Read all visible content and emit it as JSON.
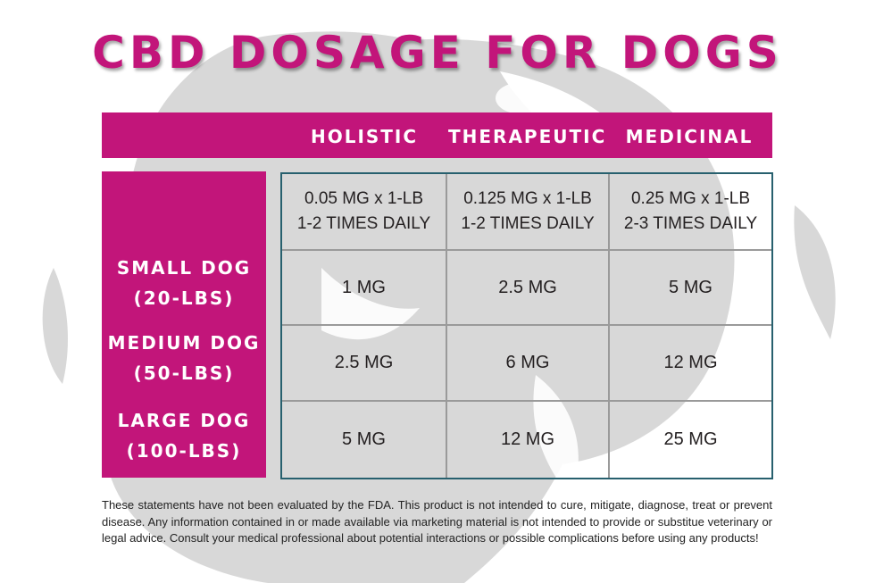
{
  "title": "CBD DOSAGE FOR DOGS",
  "colors": {
    "accent": "#c2157a",
    "grid_border": "#27606e",
    "watermark": "#c8c8c8"
  },
  "watermark_icon": "dog-head-icon",
  "columns": [
    "HOLISTIC",
    "THERAPEUTIC",
    "MEDICINAL"
  ],
  "dose_rates": [
    {
      "amount": "0.05 MG x 1-LB",
      "frequency": "1-2 TIMES DAILY"
    },
    {
      "amount": "0.125 MG x 1-LB",
      "frequency": "1-2 TIMES DAILY"
    },
    {
      "amount": "0.25 MG x 1-LB",
      "frequency": "2-3 TIMES DAILY"
    }
  ],
  "rows": [
    {
      "label": "SMALL DOG",
      "weight": "(20-LBS)",
      "values": [
        "1 MG",
        "2.5 MG",
        "5 MG"
      ]
    },
    {
      "label": "MEDIUM DOG",
      "weight": "(50-LBS)",
      "values": [
        "2.5 MG",
        "6 MG",
        "12 MG"
      ]
    },
    {
      "label": "LARGE DOG",
      "weight": "(100-LBS)",
      "values": [
        "5 MG",
        "12 MG",
        "25 MG"
      ]
    }
  ],
  "disclaimer": "These statements have not been evaluated by the FDA. This product is not intended to cure, mitigate, diagnose, treat or prevent disease. Any information contained in or made available via marketing material is not intended to provide or substitue veterinary or legal advice. Consult your medical professional about potential interactions or possible complications before using any products!"
}
